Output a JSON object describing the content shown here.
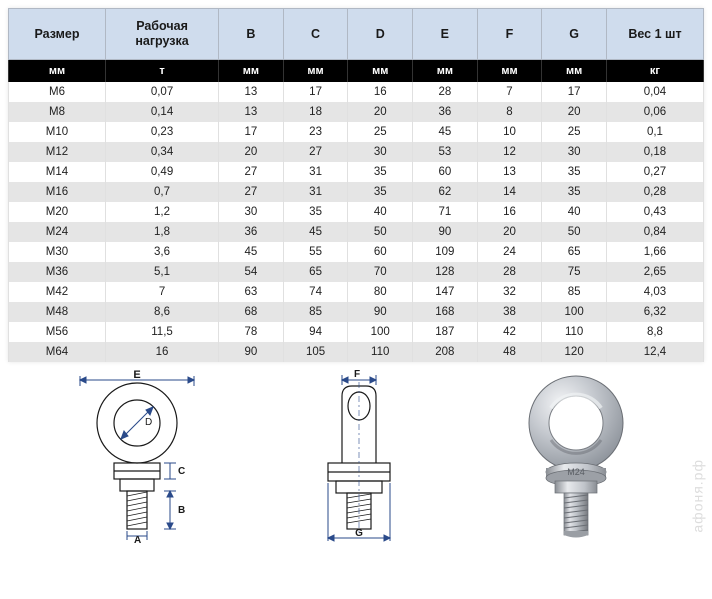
{
  "table": {
    "header1": [
      "Размер",
      "Рабочая нагрузка",
      "B",
      "C",
      "D",
      "E",
      "F",
      "G",
      "Вес 1 шт"
    ],
    "header2": [
      "мм",
      "т",
      "мм",
      "мм",
      "мм",
      "мм",
      "мм",
      "мм",
      "кг"
    ],
    "rows": [
      [
        "M6",
        "0,07",
        "13",
        "17",
        "16",
        "28",
        "7",
        "17",
        "0,04"
      ],
      [
        "M8",
        "0,14",
        "13",
        "18",
        "20",
        "36",
        "8",
        "20",
        "0,06"
      ],
      [
        "M10",
        "0,23",
        "17",
        "23",
        "25",
        "45",
        "10",
        "25",
        "0,1"
      ],
      [
        "M12",
        "0,34",
        "20",
        "27",
        "30",
        "53",
        "12",
        "30",
        "0,18"
      ],
      [
        "M14",
        "0,49",
        "27",
        "31",
        "35",
        "60",
        "13",
        "35",
        "0,27"
      ],
      [
        "M16",
        "0,7",
        "27",
        "31",
        "35",
        "62",
        "14",
        "35",
        "0,28"
      ],
      [
        "M20",
        "1,2",
        "30",
        "35",
        "40",
        "71",
        "16",
        "40",
        "0,43"
      ],
      [
        "M24",
        "1,8",
        "36",
        "45",
        "50",
        "90",
        "20",
        "50",
        "0,84"
      ],
      [
        "M30",
        "3,6",
        "45",
        "55",
        "60",
        "109",
        "24",
        "65",
        "1,66"
      ],
      [
        "M36",
        "5,1",
        "54",
        "65",
        "70",
        "128",
        "28",
        "75",
        "2,65"
      ],
      [
        "M42",
        "7",
        "63",
        "74",
        "80",
        "147",
        "32",
        "85",
        "4,03"
      ],
      [
        "M48",
        "8,6",
        "68",
        "85",
        "90",
        "168",
        "38",
        "100",
        "6,32"
      ],
      [
        "M56",
        "11,5",
        "78",
        "94",
        "100",
        "187",
        "42",
        "110",
        "8,8"
      ],
      [
        "M64",
        "16",
        "90",
        "105",
        "110",
        "208",
        "48",
        "120",
        "12,4"
      ]
    ],
    "col_widths_pct": [
      12,
      14,
      8,
      8,
      8,
      8,
      8,
      8,
      12
    ],
    "header1_bg": "#cfdced",
    "header2_bg": "#000000",
    "header2_color": "#ffffff",
    "row_even_bg": "#e5e5e5",
    "row_odd_bg": "#ffffff",
    "border_color": "#b0b8c4",
    "font_size_header": 12.5,
    "font_size_body": 11.5
  },
  "diagrams": {
    "side_view_labels": [
      "E",
      "D",
      "C",
      "B",
      "A"
    ],
    "front_view_labels": [
      "F",
      "G"
    ],
    "photo_label": "M24",
    "line_color_dim": "#2a4a8a",
    "line_color_part": "#1a1a1a",
    "photo_metal_light": "#e8e8ea",
    "photo_metal_mid": "#b8bcc2",
    "photo_metal_dark": "#7a8088",
    "photo_thread": "#a8aaae"
  },
  "watermark": "афоня.рф"
}
